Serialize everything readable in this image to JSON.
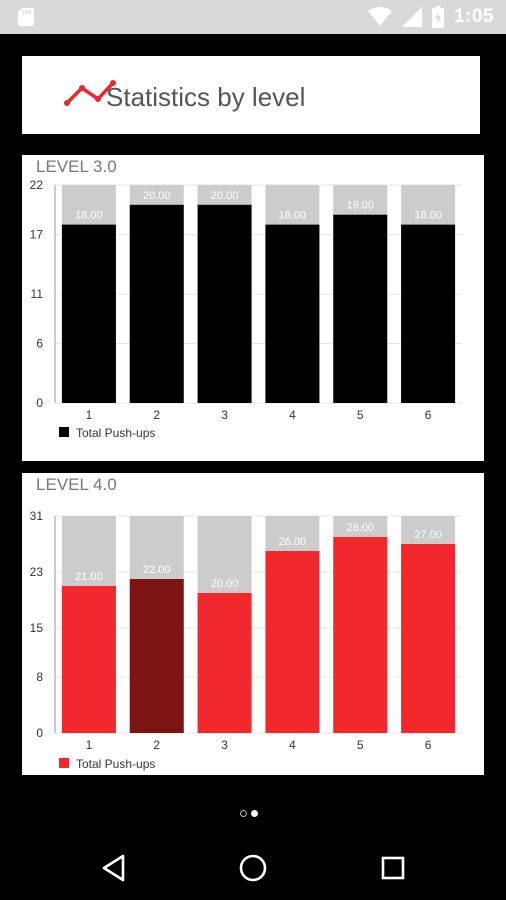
{
  "status_bar": {
    "time": "1:05"
  },
  "header": {
    "title": "Statistics by level"
  },
  "charts": [
    {
      "level_label": "LEVEL 3.0",
      "legend_label": "Total Push-ups",
      "bar_color": "#000000",
      "highlight_color": "#000000",
      "bg_bar_color": "#cccccc"
    },
    {
      "level_label": "LEVEL 4.0",
      "legend_label": "Total Push-ups",
      "bar_color": "#f1292c",
      "highlight_color": "#7e1515",
      "bg_bar_color": "#cccccc"
    }
  ],
  "chart_data": [
    {
      "type": "bar",
      "title": "LEVEL 3.0",
      "categories": [
        "1",
        "2",
        "3",
        "4",
        "5",
        "6"
      ],
      "series": [
        {
          "name": "Total Push-ups",
          "values": [
            18,
            20,
            20,
            18,
            19,
            18
          ]
        }
      ],
      "value_labels": [
        "18.00",
        "20.00",
        "20.00",
        "18.00",
        "19.00",
        "18.00"
      ],
      "ylim": [
        0,
        22
      ],
      "yticks": [
        "0",
        "6",
        "11",
        "17",
        "22"
      ],
      "highlighted_index": null,
      "legend": "bottom-left"
    },
    {
      "type": "bar",
      "title": "LEVEL 4.0",
      "categories": [
        "1",
        "2",
        "3",
        "4",
        "5",
        "6"
      ],
      "series": [
        {
          "name": "Total Push-ups",
          "values": [
            21,
            22,
            20,
            26,
            28,
            27
          ]
        }
      ],
      "value_labels": [
        "21.00",
        "22.00",
        "20.00",
        "26.00",
        "28.00",
        "27.00"
      ],
      "ylim": [
        0,
        31
      ],
      "yticks": [
        "0",
        "8",
        "15",
        "23",
        "31"
      ],
      "highlighted_index": 1,
      "legend": "bottom-left"
    }
  ]
}
